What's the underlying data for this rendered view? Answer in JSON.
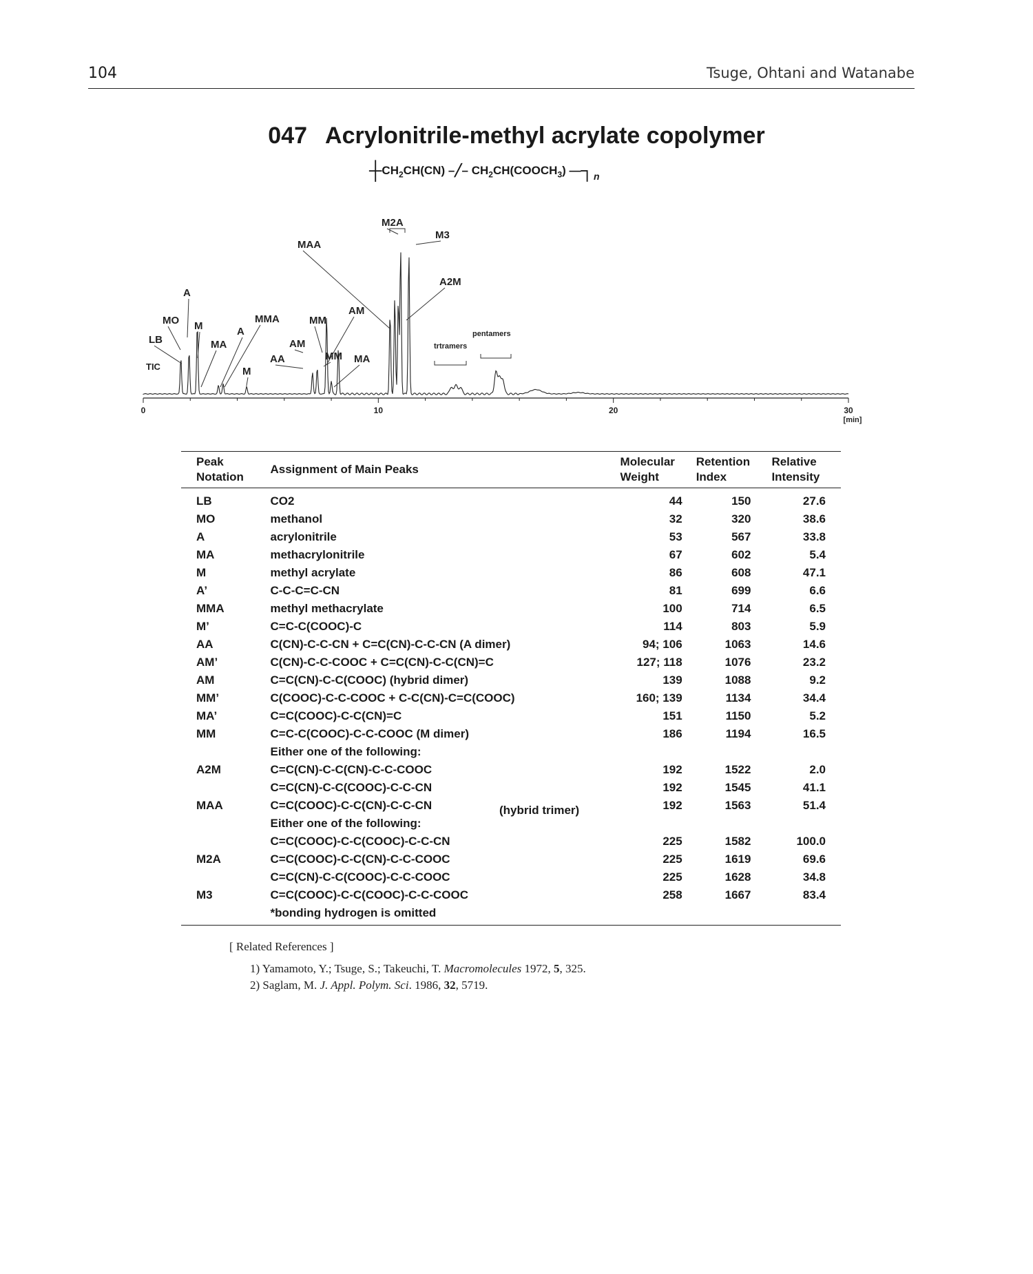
{
  "header": {
    "page_number": "104",
    "authors": "Tsuge, Ohtani and Watanabe"
  },
  "title": {
    "number": "047",
    "name": "Acrylonitrile-methyl acrylate copolymer"
  },
  "chromatogram": {
    "trace_label": "TIC",
    "x_unit": "[min]",
    "x_ticks": [
      "0",
      "10",
      "20",
      "30"
    ],
    "peak_labels": [
      "LB",
      "MO",
      "A",
      "M",
      "MA",
      "A",
      "MMA",
      "M",
      "AA",
      "AM",
      "MM",
      "MM",
      "AM",
      "MA",
      "MAA",
      "M2A",
      "M3",
      "A2M",
      "trtramers",
      "pentamers"
    ]
  },
  "table": {
    "headers": {
      "notation_1": "Peak",
      "notation_2": "Notation",
      "assignment": "Assignment of Main Peaks",
      "mw_1": "Molecular",
      "mw_2": "Weight",
      "ri_1": "Retention",
      "ri_2": "Index",
      "int_1": "Relative",
      "int_2": "Intensity"
    },
    "rows": [
      {
        "notation": "LB",
        "assignment": "CO2",
        "mw": "44",
        "ri": "150",
        "intensity": "27.6"
      },
      {
        "notation": "MO",
        "assignment": "methanol",
        "mw": "32",
        "ri": "320",
        "intensity": "38.6"
      },
      {
        "notation": "A",
        "assignment": "acrylonitrile",
        "mw": "53",
        "ri": "567",
        "intensity": "33.8"
      },
      {
        "notation": "MA",
        "assignment": "methacrylonitrile",
        "mw": "67",
        "ri": "602",
        "intensity": "5.4"
      },
      {
        "notation": "M",
        "assignment": "methyl acrylate",
        "mw": "86",
        "ri": "608",
        "intensity": "47.1"
      },
      {
        "notation": "A’",
        "assignment": "C-C-C=C-CN",
        "mw": "81",
        "ri": "699",
        "intensity": "6.6"
      },
      {
        "notation": "MMA",
        "assignment": "methyl methacrylate",
        "mw": "100",
        "ri": "714",
        "intensity": "6.5"
      },
      {
        "notation": "M’",
        "assignment": "C=C-C(COOC)-C",
        "mw": "114",
        "ri": "803",
        "intensity": "5.9"
      },
      {
        "notation": "AA",
        "assignment": "C(CN)-C-C-CN + C=C(CN)-C-C-CN (A dimer)",
        "mw": "94; 106",
        "ri": "1063",
        "intensity": "14.6"
      },
      {
        "notation": "AM’",
        "assignment": "C(CN)-C-C-COOC + C=C(CN)-C-C(CN)=C",
        "mw": "127; 118",
        "ri": "1076",
        "intensity": "23.2"
      },
      {
        "notation": "AM",
        "assignment": "C=C(CN)-C-C(COOC) (hybrid dimer)",
        "mw": "139",
        "ri": "1088",
        "intensity": "9.2"
      },
      {
        "notation": "MM’",
        "assignment": "C(COOC)-C-C-COOC + C-C(CN)-C=C(COOC)",
        "mw": "160; 139",
        "ri": "1134",
        "intensity": "34.4"
      },
      {
        "notation": "MA’",
        "assignment": "C=C(COOC)-C-C(CN)=C",
        "mw": "151",
        "ri": "1150",
        "intensity": "5.2"
      },
      {
        "notation": "MM",
        "assignment": "C=C-C(COOC)-C-C-COOC (M dimer)",
        "mw": "186",
        "ri": "1194",
        "intensity": "16.5"
      },
      {
        "notation": "",
        "assignment": "Either one of the following:",
        "mw": "",
        "ri": "",
        "intensity": ""
      },
      {
        "notation": "A2M",
        "assignment": "C=C(CN)-C-C(CN)-C-C-COOC",
        "mw": "192",
        "ri": "1522",
        "intensity": "2.0"
      },
      {
        "notation": "",
        "assignment": "C=C(CN)-C-C(COOC)-C-C-CN",
        "mw": "192",
        "ri": "1545",
        "intensity": "41.1"
      },
      {
        "notation": "MAA",
        "assignment": "C=C(COOC)-C-C(CN)-C-C-CN",
        "mw": "192",
        "ri": "1563",
        "intensity": "51.4"
      },
      {
        "notation": "",
        "assignment": "Either one of the following:",
        "mw": "",
        "ri": "",
        "intensity": ""
      },
      {
        "notation": "",
        "assignment": "C=C(COOC)-C-C(COOC)-C-C-CN",
        "mw": "225",
        "ri": "1582",
        "intensity": "100.0"
      },
      {
        "notation": "M2A",
        "assignment": "C=C(COOC)-C-C(CN)-C-C-COOC",
        "mw": "225",
        "ri": "1619",
        "intensity": "69.6"
      },
      {
        "notation": "",
        "assignment": "C=C(CN)-C-C(COOC)-C-C-COOC",
        "mw": "225",
        "ri": "1628",
        "intensity": "34.8"
      },
      {
        "notation": "M3",
        "assignment": "C=C(COOC)-C-C(COOC)-C-C-COOC",
        "mw": "258",
        "ri": "1667",
        "intensity": "83.4"
      },
      {
        "notation": "",
        "assignment": "*bonding hydrogen is omitted",
        "mw": "",
        "ri": "",
        "intensity": ""
      }
    ],
    "hybrid_note": "(hybrid trimer)"
  },
  "references": {
    "heading": "[ Related References ]",
    "items": [
      {
        "prefix": "1) Yamamoto, Y.; Tsuge, S.; Takeuchi, T. ",
        "journal": "Macromolecules",
        "year": " 1972, ",
        "volume": "5",
        "pages": ", 325."
      },
      {
        "prefix": "2) Saglam, M. ",
        "journal": "J. Appl. Polym. Sci",
        "year": ". 1986, ",
        "volume": "32",
        "pages": ", 5719."
      }
    ]
  }
}
